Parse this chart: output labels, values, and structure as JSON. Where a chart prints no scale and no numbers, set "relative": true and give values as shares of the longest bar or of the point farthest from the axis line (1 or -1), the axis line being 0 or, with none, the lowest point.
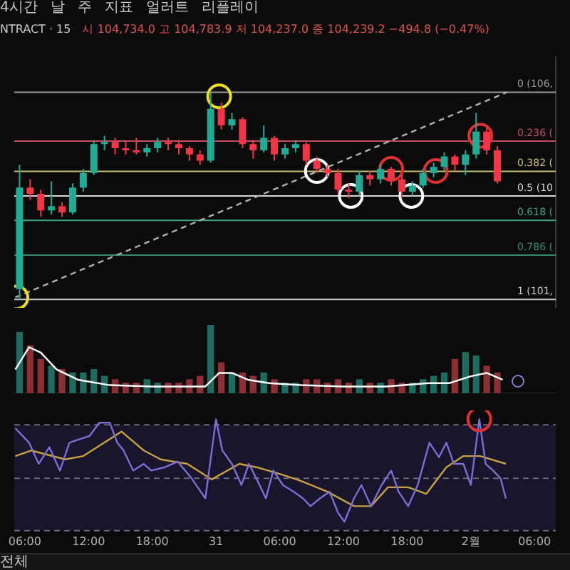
{
  "chart_data": [
    {
      "type": "candlestick",
      "tick_labels": false,
      "annotations": [
        "4시간",
        "날",
        "주",
        "지표",
        "얼러트",
        "리플레이",
        "NTRACT · 15",
        "시 104,734.0 고 104,783.9 저 104,237.0 종 104,239.2 −494.8 (−0.47%)",
        "전체"
      ],
      "xlim": [
        "--01-30T05:00",
        "--02-01T08:00"
      ],
      "xticks": [
        {
          "value": "--01-30T06:00",
          "label": "06:00"
        },
        {
          "value": "--01-30T12:00",
          "label": "12:00"
        },
        {
          "value": "--01-30T18:00",
          "label": "18:00"
        },
        {
          "value": "--01-31T00:00",
          "label": "31"
        },
        {
          "value": "--01-31T06:00",
          "label": "06:00"
        },
        {
          "value": "--01-31T12:00",
          "label": "12:00"
        },
        {
          "value": "--01-31T18:00",
          "label": "18:00"
        },
        {
          "value": "--02-01T00:00",
          "label": "2월"
        },
        {
          "value": "--02-01T06:00",
          "label": "06:00"
        }
      ],
      "ylim": [
        1.04,
        -0.17
      ],
      "x": [
        "--01-30T05:30",
        "--01-30T06:30",
        "--01-30T07:30",
        "--01-30T08:30",
        "--01-30T09:30",
        "--01-30T10:30",
        "--01-30T11:30",
        "--01-30T12:30",
        "--01-30T13:30",
        "--01-30T14:30",
        "--01-30T15:30",
        "--01-30T16:30",
        "--01-30T17:30",
        "--01-30T18:30",
        "--01-30T19:30",
        "--01-30T20:30",
        "--01-30T21:30",
        "--01-30T22:30",
        "--01-30T23:30",
        "--01-31T00:30",
        "--01-31T01:30",
        "--01-31T02:30",
        "--01-31T03:30",
        "--01-31T04:30",
        "--01-31T05:30",
        "--01-31T06:30",
        "--01-31T07:30",
        "--01-31T08:30",
        "--01-31T09:30",
        "--01-31T10:30",
        "--01-31T11:30",
        "--01-31T12:30",
        "--01-31T13:30",
        "--01-31T14:30",
        "--01-31T15:30",
        "--01-31T16:30",
        "--01-31T17:30",
        "--01-31T18:30",
        "--01-31T19:30",
        "--01-31T20:30",
        "--01-31T21:30",
        "--01-31T22:30",
        "--01-31T23:30",
        "--02-01T00:30",
        "--02-01T01:30",
        "--02-01T02:30"
      ],
      "ohlc": [
        [
          0.95,
          1,
          0.35,
          0.46
        ],
        [
          0.46,
          0.52,
          0.42,
          0.49
        ],
        [
          0.49,
          0.6,
          0.47,
          0.57
        ],
        [
          0.57,
          0.59,
          0.43,
          0.55
        ],
        [
          0.55,
          0.6,
          0.53,
          0.58
        ],
        [
          0.58,
          0.59,
          0.44,
          0.46
        ],
        [
          0.46,
          0.48,
          0.37,
          0.39
        ],
        [
          0.39,
          0.4,
          0.23,
          0.25
        ],
        [
          0.25,
          0.28,
          0.21,
          0.24
        ],
        [
          0.24,
          0.3,
          0.22,
          0.27
        ],
        [
          0.27,
          0.3,
          0.24,
          0.28
        ],
        [
          0.28,
          0.3,
          0.22,
          0.29
        ],
        [
          0.29,
          0.31,
          0.25,
          0.27
        ],
        [
          0.27,
          0.29,
          0.22,
          0.24
        ],
        [
          0.24,
          0.28,
          0.22,
          0.25
        ],
        [
          0.25,
          0.3,
          0.23,
          0.27
        ],
        [
          0.27,
          0.33,
          0.26,
          0.3
        ],
        [
          0.3,
          0.35,
          0.28,
          0.33
        ],
        [
          0.33,
          0.34,
          0,
          0.08
        ],
        [
          0.08,
          0.18,
          0.05,
          0.16
        ],
        [
          0.16,
          0.18,
          0.1,
          0.13
        ],
        [
          0.13,
          0.27,
          0.12,
          0.25
        ],
        [
          0.25,
          0.32,
          0.23,
          0.28
        ],
        [
          0.28,
          0.29,
          0.16,
          0.22
        ],
        [
          0.22,
          0.33,
          0.21,
          0.3
        ],
        [
          0.3,
          0.32,
          0.25,
          0.27
        ],
        [
          0.27,
          0.29,
          0.23,
          0.25
        ],
        [
          0.25,
          0.35,
          0.24,
          0.33
        ],
        [
          0.33,
          0.39,
          0.31,
          0.37
        ],
        [
          0.37,
          0.41,
          0.35,
          0.39
        ],
        [
          0.39,
          0.49,
          0.37,
          0.47
        ],
        [
          0.47,
          0.51,
          0.44,
          0.48
        ],
        [
          0.48,
          0.5,
          0.38,
          0.4
        ],
        [
          0.4,
          0.45,
          0.38,
          0.42
        ],
        [
          0.42,
          0.44,
          0.35,
          0.37
        ],
        [
          0.37,
          0.45,
          0.36,
          0.42
        ],
        [
          0.42,
          0.51,
          0.4,
          0.48
        ],
        [
          0.48,
          0.5,
          0.43,
          0.45
        ],
        [
          0.45,
          0.46,
          0.37,
          0.39
        ],
        [
          0.39,
          0.41,
          0.34,
          0.36
        ],
        [
          0.36,
          0.38,
          0.29,
          0.31
        ],
        [
          0.31,
          0.38,
          0.3,
          0.35
        ],
        [
          0.35,
          0.4,
          0.28,
          0.3
        ],
        [
          0.3,
          0.32,
          0.1,
          0.19
        ],
        [
          0.19,
          0.3,
          0.16,
          0.28
        ],
        [
          0.28,
          0.44,
          0.26,
          0.43
        ]
      ],
      "colors": [
        "#22ab94",
        "#f23645",
        "#f23645",
        "#22ab94",
        "#f23645",
        "#22ab94",
        "#22ab94",
        "#22ab94",
        "#22ab94",
        "#f23645",
        "#f23645",
        "#f23645",
        "#22ab94",
        "#22ab94",
        "#f23645",
        "#f23645",
        "#f23645",
        "#f23645",
        "#22ab94",
        "#f23645",
        "#22ab94",
        "#f23645",
        "#f23645",
        "#22ab94",
        "#f23645",
        "#22ab94",
        "#22ab94",
        "#f23645",
        "#f23645",
        "#f23645",
        "#f23645",
        "#f23645",
        "#22ab94",
        "#f23645",
        "#22ab94",
        "#f23645",
        "#f23645",
        "#22ab94",
        "#22ab94",
        "#22ab94",
        "#22ab94",
        "#f23645",
        "#22ab94",
        "#22ab94",
        "#f23645",
        "#f23645"
      ],
      "series": [
        {
          "type": "line",
          "x": [
            "--01-30T05:06",
            "--02-01T03:24"
          ],
          "values": [
            0.99,
            0
          ],
          "color": "#b0b0b0",
          "line_style": "dashed",
          "marker": "none"
        },
        {
          "type": "scatter",
          "marker": "circle",
          "color": "#e8e020",
          "x": [
            "--01-30T05:12",
            "--01-31T00:18"
          ],
          "values": [
            0.99,
            0.02
          ]
        },
        {
          "type": "scatter",
          "marker": "circle",
          "color": "#ffffff",
          "x": [
            "--01-31T09:30",
            "--01-31T12:42",
            "--01-31T18:24"
          ],
          "values": [
            0.38,
            0.5,
            0.5
          ]
        },
        {
          "type": "scatter",
          "marker": "circle",
          "color": "#e03030",
          "x": [
            "--01-31T16:30",
            "--01-31T20:42",
            "--02-01T00:54"
          ],
          "values": [
            0.37,
            0.38,
            0.21
          ]
        }
      ],
      "ref_lines": [
        {
          "axis": "y",
          "value": 0,
          "label": "0 (106,",
          "color": "#9a9a9a"
        },
        {
          "axis": "y",
          "value": 0.236,
          "label": "0.236 (",
          "color": "#c05060"
        },
        {
          "axis": "y",
          "value": 0.382,
          "label": "0.382 (",
          "color": "#c8c070"
        },
        {
          "axis": "y",
          "value": 0.5,
          "label": "0.5 (10",
          "color": "#d8d8d8"
        },
        {
          "axis": "y",
          "value": 0.618,
          "label": "0.618 (",
          "color": "#40a088"
        },
        {
          "axis": "y",
          "value": 0.786,
          "label": "0.786 (",
          "color": "#3a8a74"
        },
        {
          "axis": "y",
          "value": 1,
          "label": "1 (101,",
          "color": "#c8c8c8"
        }
      ]
    },
    {
      "type": "bar",
      "relative": true,
      "tick_labels": false,
      "xlim": [
        "--01-30T05:00",
        "--02-01T08:00"
      ],
      "xticks": [
        {
          "value": "--01-30T06:00",
          "label": "06:00"
        },
        {
          "value": "--01-30T12:00",
          "label": "12:00"
        },
        {
          "value": "--01-30T18:00",
          "label": "18:00"
        },
        {
          "value": "--01-31T00:00",
          "label": "31"
        },
        {
          "value": "--01-31T06:00",
          "label": "06:00"
        },
        {
          "value": "--01-31T12:00",
          "label": "12:00"
        },
        {
          "value": "--01-31T18:00",
          "label": "18:00"
        },
        {
          "value": "--02-01T00:00",
          "label": "2월"
        },
        {
          "value": "--02-01T06:00",
          "label": "06:00"
        }
      ],
      "series": [
        {
          "type": "bar",
          "x": [
            "--01-30T05:30",
            "--01-30T06:30",
            "--01-30T07:30",
            "--01-30T08:30",
            "--01-30T09:30",
            "--01-30T10:30",
            "--01-30T11:30",
            "--01-30T12:30",
            "--01-30T13:30",
            "--01-30T14:30",
            "--01-30T15:30",
            "--01-30T16:30",
            "--01-30T17:30",
            "--01-30T18:30",
            "--01-30T19:30",
            "--01-30T20:30",
            "--01-30T21:30",
            "--01-30T22:30",
            "--01-30T23:30",
            "--01-31T00:30",
            "--01-31T01:30",
            "--01-31T02:30",
            "--01-31T03:30",
            "--01-31T04:30",
            "--01-31T05:30",
            "--01-31T06:30",
            "--01-31T07:30",
            "--01-31T08:30",
            "--01-31T09:30",
            "--01-31T10:30",
            "--01-31T11:30",
            "--01-31T12:30",
            "--01-31T13:30",
            "--01-31T14:30",
            "--01-31T15:30",
            "--01-31T16:30",
            "--01-31T17:30",
            "--01-31T18:30",
            "--01-31T19:30",
            "--01-31T20:30",
            "--01-31T21:30",
            "--01-31T22:30",
            "--01-31T23:30",
            "--02-01T00:30",
            "--02-01T01:30",
            "--02-01T02:30"
          ],
          "values": [
            0.9,
            0.7,
            0.5,
            0.4,
            0.35,
            0.3,
            0.3,
            0.35,
            0.25,
            0.2,
            0.15,
            0.15,
            0.2,
            0.15,
            0.15,
            0.15,
            0.2,
            0.25,
            1,
            0.45,
            0.3,
            0.3,
            0.25,
            0.3,
            0.2,
            0.15,
            0.15,
            0.2,
            0.2,
            0.15,
            0.2,
            0.15,
            0.2,
            0.15,
            0.15,
            0.2,
            0.15,
            0.15,
            0.2,
            0.25,
            0.3,
            0.5,
            0.6,
            0.55,
            0.4,
            0.3
          ],
          "colors": [
            "#1e6b60",
            "#8b2f35",
            "#8b2f35",
            "#1e6b60",
            "#8b2f35",
            "#1e6b60",
            "#1e6b60",
            "#1e6b60",
            "#1e6b60",
            "#8b2f35",
            "#8b2f35",
            "#8b2f35",
            "#1e6b60",
            "#1e6b60",
            "#8b2f35",
            "#8b2f35",
            "#8b2f35",
            "#8b2f35",
            "#1e6b60",
            "#8b2f35",
            "#1e6b60",
            "#8b2f35",
            "#8b2f35",
            "#1e6b60",
            "#8b2f35",
            "#1e6b60",
            "#1e6b60",
            "#8b2f35",
            "#8b2f35",
            "#8b2f35",
            "#8b2f35",
            "#8b2f35",
            "#1e6b60",
            "#8b2f35",
            "#1e6b60",
            "#8b2f35",
            "#8b2f35",
            "#1e6b60",
            "#1e6b60",
            "#1e6b60",
            "#1e6b60",
            "#8b2f35",
            "#1e6b60",
            "#1e6b60",
            "#8b2f35",
            "#8b2f35"
          ]
        },
        {
          "type": "line",
          "color": "#ffffff",
          "marker": "none",
          "x": [
            "--01-30T05:06",
            "--01-30T06:24",
            "--01-30T07:30",
            "--01-30T09:00",
            "--01-30T11:00",
            "--01-30T14:00",
            "--01-30T18:00",
            "--01-30T23:00",
            "--01-31T00:18",
            "--01-31T01:30",
            "--01-31T03:00",
            "--01-31T05:00",
            "--01-31T08:00",
            "--01-31T12:00",
            "--01-31T16:00",
            "--01-31T20:00",
            "--01-31T22:00",
            "--02-01T00:00",
            "--02-01T01:30",
            "--02-01T03:00"
          ],
          "values": [
            0.35,
            0.68,
            0.6,
            0.35,
            0.2,
            0.12,
            0.1,
            0.1,
            0.3,
            0.3,
            0.2,
            0.15,
            0.12,
            0.1,
            0.1,
            0.15,
            0.15,
            0.25,
            0.3,
            0.2
          ]
        }
      ]
    },
    {
      "type": "line",
      "relative": true,
      "tick_labels": "x",
      "xlim": [
        "--01-30T05:00",
        "--02-01T08:00"
      ],
      "xticks": [
        {
          "value": "--01-30T06:00",
          "label": "06:00"
        },
        {
          "value": "--01-30T12:00",
          "label": "12:00"
        },
        {
          "value": "--01-30T18:00",
          "label": "18:00"
        },
        {
          "value": "--01-31T00:00",
          "label": "31"
        },
        {
          "value": "--01-31T06:00",
          "label": "06:00"
        },
        {
          "value": "--01-31T12:00",
          "label": "12:00"
        },
        {
          "value": "--01-31T18:00",
          "label": "18:00"
        },
        {
          "value": "--02-01T00:00",
          "label": "2월"
        },
        {
          "value": "--02-01T06:00",
          "label": "06:00"
        }
      ],
      "series": [
        {
          "type": "line",
          "color": "#7b6fd6",
          "marker": "none",
          "x": [
            "--01-30T05:06",
            "--01-30T06:24",
            "--01-30T07:18",
            "--01-30T08:18",
            "--01-30T09:18",
            "--01-30T10:12",
            "--01-30T11:06",
            "--01-30T12:06",
            "--01-30T13:00",
            "--01-30T14:00",
            "--01-30T14:42",
            "--01-30T15:18",
            "--01-30T16:12",
            "--01-30T17:12",
            "--01-30T17:54",
            "--01-30T19:12",
            "--01-30T20:24",
            "--01-30T21:42",
            "--01-30T23:00",
            "--01-31T00:00",
            "--01-31T00:36",
            "--01-31T01:30",
            "--01-31T02:24",
            "--01-31T03:06",
            "--01-31T03:48",
            "--01-31T04:42",
            "--01-31T05:24",
            "--01-31T06:18",
            "--01-31T07:18",
            "--01-31T08:12",
            "--01-31T08:54",
            "--01-31T09:48",
            "--01-31T10:42",
            "--01-31T11:30",
            "--01-31T12:06",
            "--01-31T13:00",
            "--01-31T13:42",
            "--01-31T14:36",
            "--01-31T15:36",
            "--01-31T16:30",
            "--01-31T17:12",
            "--01-31T18:06",
            "--01-31T19:00",
            "--01-31T20:06",
            "--01-31T21:00",
            "--01-31T21:42",
            "--01-31T22:24",
            "--01-31T23:18",
            "--02-01T00:00",
            "--02-01T00:48",
            "--02-01T01:24",
            "--02-01T02:06",
            "--02-01T02:48",
            "--02-01T03:18"
          ],
          "values": [
            0.92,
            0.79,
            0.6,
            0.75,
            0.54,
            0.79,
            0.82,
            0.85,
            0.97,
            0.97,
            0.79,
            0.72,
            0.54,
            0.6,
            0.54,
            0.57,
            0.62,
            0.47,
            0.29,
            1,
            0.72,
            0.6,
            0.41,
            0.6,
            0.47,
            0.29,
            0.54,
            0.41,
            0.35,
            0.29,
            0.22,
            0.29,
            0.35,
            0.16,
            0.08,
            0.29,
            0.41,
            0.22,
            0.41,
            0.54,
            0.35,
            0.22,
            0.41,
            0.79,
            0.66,
            0.79,
            0.6,
            0.6,
            0.41,
            1,
            0.6,
            0.54,
            0.47,
            0.29
          ]
        },
        {
          "type": "line",
          "color": "#c8a040",
          "marker": "none",
          "x": [
            "--01-30T05:06",
            "--01-30T06:36",
            "--01-30T09:48",
            "--01-30T11:30",
            "--01-30T15:06",
            "--01-30T17:12",
            "--01-30T18:48",
            "--01-30T21:18",
            "--01-30T23:36",
            "--01-31T02:12",
            "--01-31T03:48",
            "--01-31T06:00",
            "--01-31T07:54",
            "--01-31T10:30",
            "--01-31T13:00",
            "--01-31T14:36",
            "--01-31T16:12",
            "--01-31T18:06",
            "--01-31T19:48",
            "--01-31T21:42",
            "--01-31T23:18",
            "--02-01T00:54",
            "--02-01T03:18"
          ],
          "values": [
            0.67,
            0.72,
            0.64,
            0.67,
            0.89,
            0.72,
            0.64,
            0.6,
            0.46,
            0.6,
            0.57,
            0.51,
            0.45,
            0.35,
            0.22,
            0.22,
            0.39,
            0.39,
            0.33,
            0.57,
            0.67,
            0.67,
            0.6
          ]
        },
        {
          "type": "scatter",
          "marker": "circle",
          "color": "#e03030",
          "x": [
            "--02-01T00:48"
          ],
          "values": [
            1
          ]
        }
      ],
      "bands": [
        {
          "axis": "y",
          "from": 0,
          "to": 0.95,
          "color": "#19152c"
        }
      ],
      "ref_lines": [
        {
          "axis": "y",
          "value": 0.95,
          "color": "#6a6a7a",
          "line_style": "dashed"
        },
        {
          "axis": "y",
          "value": 0.47,
          "color": "#6a6a7a",
          "line_style": "dashed"
        },
        {
          "axis": "y",
          "value": 0,
          "color": "#6a6a7a",
          "line_style": "dashed"
        }
      ]
    }
  ]
}
